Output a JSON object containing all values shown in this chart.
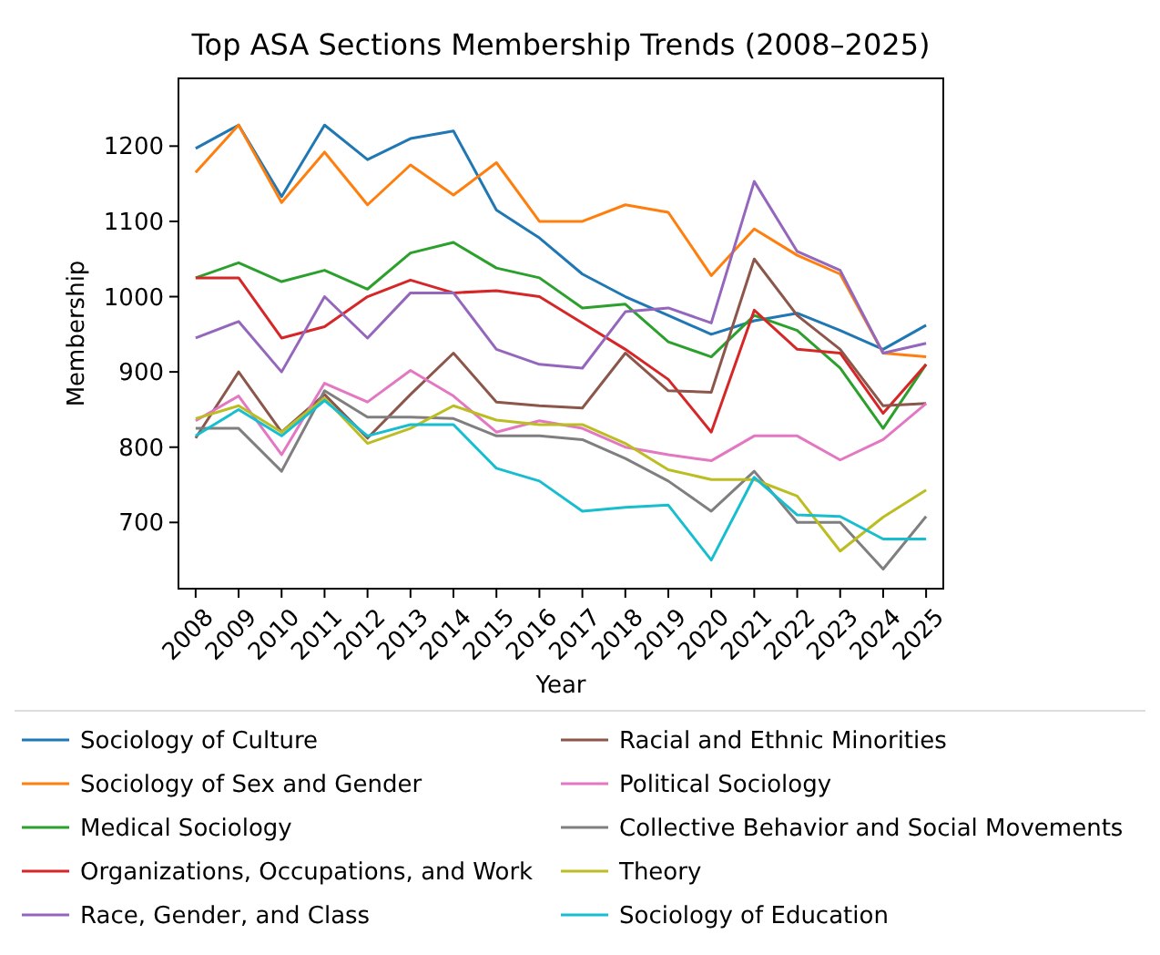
{
  "chart_data": {
    "type": "line",
    "title": "Top ASA Sections Membership Trends (2008–2025)",
    "xlabel": "Year",
    "ylabel": "Membership",
    "x": [
      2008,
      2009,
      2010,
      2011,
      2012,
      2013,
      2014,
      2015,
      2016,
      2017,
      2018,
      2019,
      2020,
      2021,
      2022,
      2023,
      2024,
      2025
    ],
    "xlim": [
      2007.6,
      2025.4
    ],
    "xticks": [
      2008,
      2009,
      2010,
      2011,
      2012,
      2013,
      2014,
      2015,
      2016,
      2017,
      2018,
      2019,
      2020,
      2021,
      2022,
      2023,
      2024,
      2025
    ],
    "ylim": [
      612,
      1290
    ],
    "yticks": [
      700,
      800,
      900,
      1000,
      1100,
      1200
    ],
    "grid": false,
    "legend": "bottom",
    "marker": "none",
    "line_style": "solid",
    "series": [
      {
        "name": "Sociology of Culture",
        "color": "#1f77b4",
        "values": [
          1197,
          1228,
          1133,
          1228,
          1182,
          1210,
          1220,
          1115,
          1078,
          1030,
          1000,
          975,
          950,
          968,
          978,
          955,
          930,
          962
        ]
      },
      {
        "name": "Sociology of Sex and Gender",
        "color": "#ff7f0e",
        "values": [
          1165,
          1228,
          1125,
          1192,
          1122,
          1175,
          1135,
          1178,
          1100,
          1100,
          1122,
          1112,
          1028,
          1090,
          1055,
          1030,
          925,
          920
        ]
      },
      {
        "name": "Medical Sociology",
        "color": "#2ca02c",
        "values": [
          1025,
          1045,
          1020,
          1035,
          1010,
          1058,
          1072,
          1038,
          1025,
          985,
          990,
          940,
          920,
          975,
          955,
          905,
          825,
          910
        ]
      },
      {
        "name": "Organizations, Occupations, and Work",
        "color": "#d62728",
        "values": [
          1025,
          1025,
          945,
          960,
          1000,
          1022,
          1005,
          1008,
          1000,
          965,
          930,
          890,
          820,
          982,
          930,
          925,
          845,
          910
        ]
      },
      {
        "name": "Race, Gender, and Class",
        "color": "#9467bd",
        "values": [
          945,
          967,
          900,
          1000,
          945,
          1005,
          1005,
          930,
          910,
          905,
          980,
          985,
          965,
          1153,
          1060,
          1035,
          925,
          938
        ]
      },
      {
        "name": "Racial and Ethnic Minorities",
        "color": "#8c564b",
        "values": [
          812,
          900,
          820,
          870,
          812,
          870,
          925,
          860,
          855,
          852,
          925,
          875,
          873,
          1050,
          975,
          930,
          855,
          858
        ]
      },
      {
        "name": "Political Sociology",
        "color": "#e377c2",
        "values": [
          835,
          868,
          790,
          885,
          860,
          902,
          868,
          820,
          835,
          825,
          800,
          790,
          782,
          815,
          815,
          783,
          810,
          858
        ]
      },
      {
        "name": "Collective Behavior and Social Movements",
        "color": "#7f7f7f",
        "values": [
          825,
          825,
          768,
          875,
          840,
          840,
          838,
          815,
          815,
          810,
          785,
          755,
          715,
          768,
          700,
          700,
          638,
          708
        ]
      },
      {
        "name": "Theory",
        "color": "#bcbd22",
        "values": [
          838,
          855,
          820,
          865,
          805,
          825,
          855,
          836,
          830,
          830,
          805,
          770,
          757,
          757,
          735,
          662,
          707,
          743
        ]
      },
      {
        "name": "Sociology of Education",
        "color": "#17becf",
        "values": [
          815,
          850,
          815,
          862,
          815,
          830,
          830,
          772,
          755,
          715,
          720,
          723,
          650,
          760,
          710,
          708,
          678,
          678
        ]
      }
    ]
  }
}
